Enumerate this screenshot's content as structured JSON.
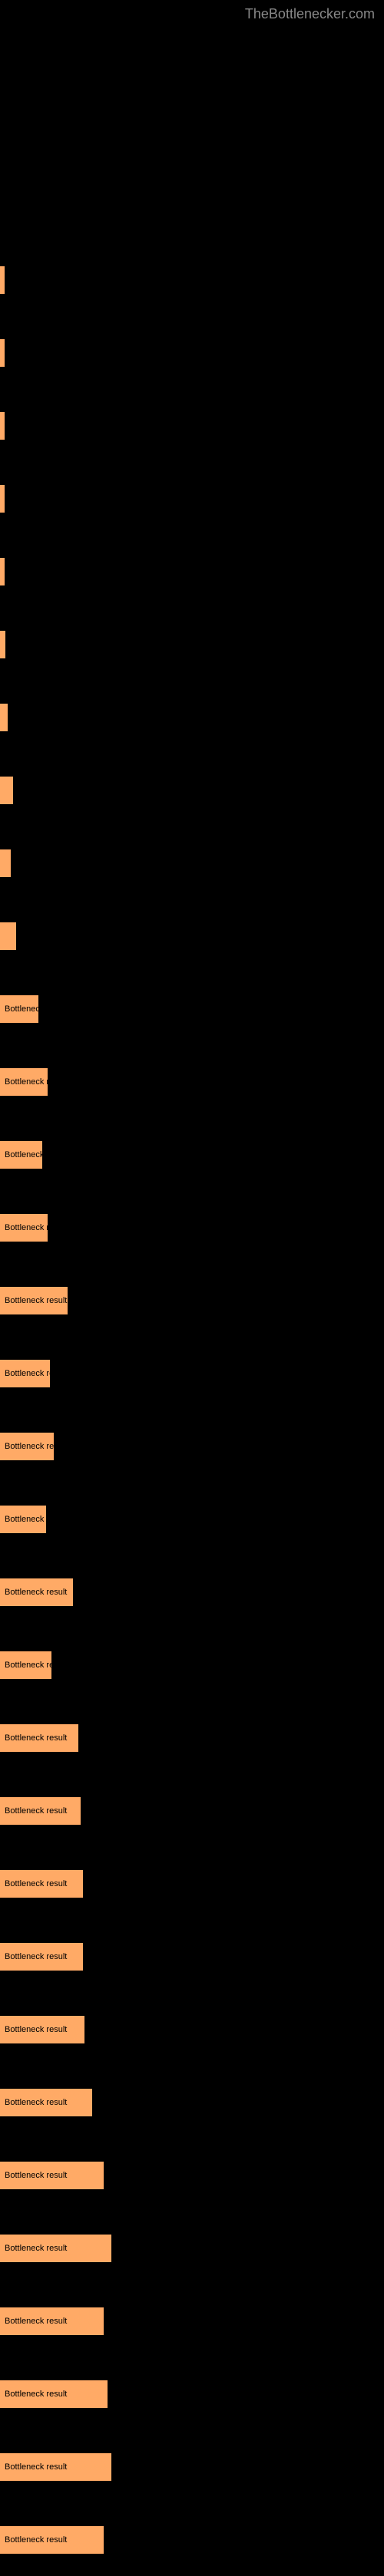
{
  "header": {
    "site_name": "TheBottlenecker.com"
  },
  "chart": {
    "bar_color": "#ffaa66",
    "background_color": "#000000",
    "text_color": "#000000",
    "label_text": "Bottleneck result",
    "bars": [
      {
        "width": 2,
        "show_text": false
      },
      {
        "width": 5,
        "show_text": false
      },
      {
        "width": 2,
        "show_text": false
      },
      {
        "width": 2,
        "show_text": false
      },
      {
        "width": 5,
        "show_text": false
      },
      {
        "width": 7,
        "show_text": false
      },
      {
        "width": 10,
        "show_text": false
      },
      {
        "width": 17,
        "show_text": false
      },
      {
        "width": 14,
        "show_text": false
      },
      {
        "width": 21,
        "show_text": false
      },
      {
        "width": 50,
        "show_text": true
      },
      {
        "width": 62,
        "show_text": true
      },
      {
        "width": 55,
        "show_text": true
      },
      {
        "width": 62,
        "show_text": true
      },
      {
        "width": 88,
        "show_text": true
      },
      {
        "width": 65,
        "show_text": true
      },
      {
        "width": 70,
        "show_text": true
      },
      {
        "width": 60,
        "show_text": true
      },
      {
        "width": 95,
        "show_text": true
      },
      {
        "width": 67,
        "show_text": true
      },
      {
        "width": 102,
        "show_text": true
      },
      {
        "width": 105,
        "show_text": true
      },
      {
        "width": 108,
        "show_text": true
      },
      {
        "width": 108,
        "show_text": true
      },
      {
        "width": 110,
        "show_text": true
      },
      {
        "width": 120,
        "show_text": true
      },
      {
        "width": 135,
        "show_text": true
      },
      {
        "width": 145,
        "show_text": true
      },
      {
        "width": 135,
        "show_text": true
      },
      {
        "width": 140,
        "show_text": true
      },
      {
        "width": 145,
        "show_text": true
      },
      {
        "width": 135,
        "show_text": true
      }
    ]
  }
}
